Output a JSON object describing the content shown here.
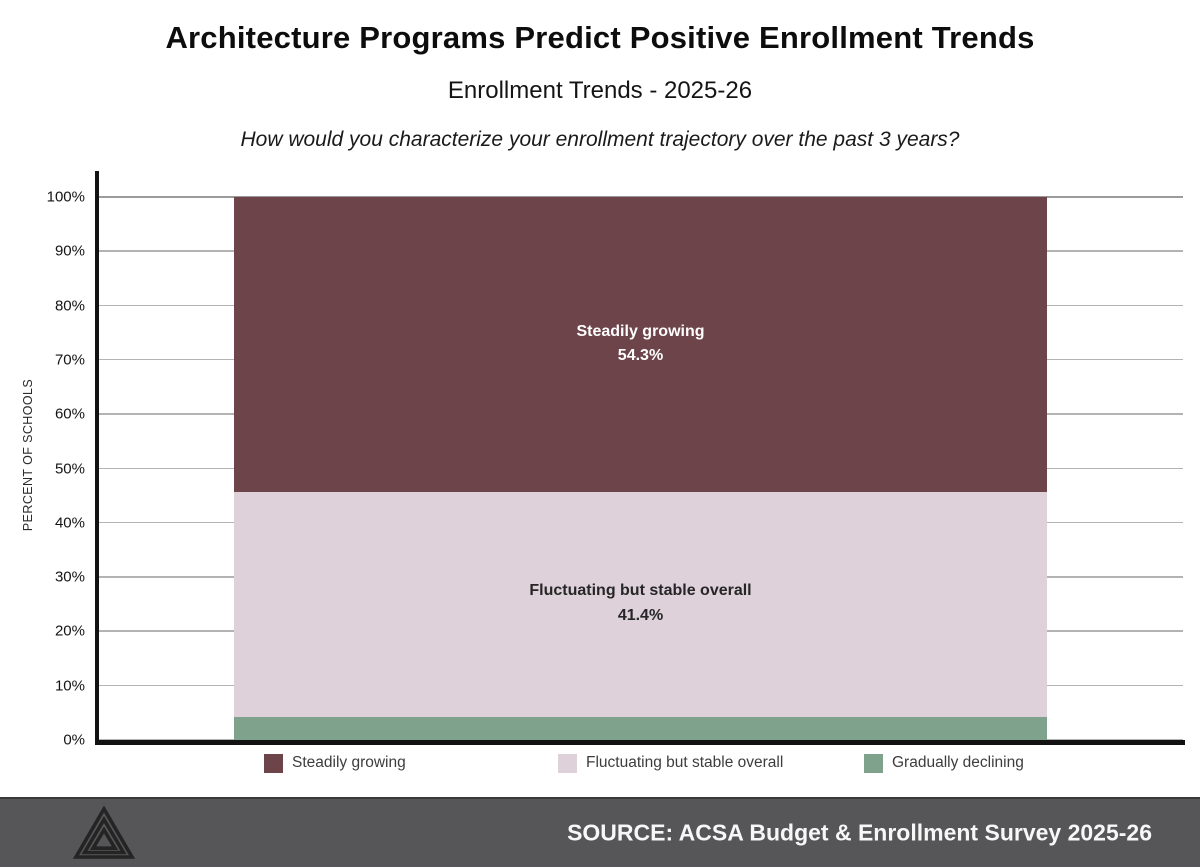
{
  "header": {
    "title": "Architecture Programs Predict Positive Enrollment Trends",
    "subtitle": "Enrollment Trends - 2025-26",
    "question": "How would you characterize your enrollment trajectory over the past 3 years?"
  },
  "chart_data": {
    "type": "bar",
    "stacked": true,
    "orientation": "vertical",
    "categories": [
      ""
    ],
    "series": [
      {
        "name": "Steadily growing",
        "value": 54.3,
        "display_label": "Steadily growing",
        "display_value": "54.3%",
        "color": "#6C4449",
        "label_color": "#ffffff",
        "show_label": true
      },
      {
        "name": "Fluctuating but stable overall",
        "value": 41.4,
        "display_label": "Fluctuating but stable overall",
        "display_value": "41.4%",
        "color": "#DFD1D9",
        "label_color": "#262626",
        "show_label": true
      },
      {
        "name": "Gradually declining",
        "value": 4.3,
        "display_label": "Gradually declining",
        "display_value": "",
        "color": "#7FA28C",
        "label_color": "#262626",
        "show_label": false
      }
    ],
    "ylabel": "PERCENT OF SCHOOLS",
    "ylim": [
      0,
      100
    ],
    "yticks": [
      "0%",
      "10%",
      "20%",
      "30%",
      "40%",
      "50%",
      "60%",
      "70%",
      "80%",
      "90%",
      "100%"
    ],
    "grid": true,
    "legend_position": "bottom",
    "legend": [
      "Steadily growing",
      "Fluctuating but stable overall",
      "Gradually declining"
    ]
  },
  "footer": {
    "source": "SOURCE: ACSA Budget & Enrollment Survey 2025-26"
  }
}
